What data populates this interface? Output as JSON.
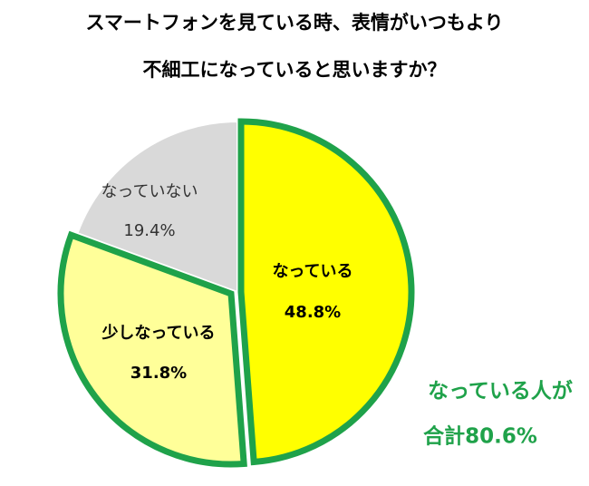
{
  "chart_data": {
    "type": "pie",
    "title": [
      "スマートフォンを見ている時、表情がいつもより",
      "不細工になっていると思いますか？"
    ],
    "categories": [
      "なっている",
      "少しなっている",
      "なっていない"
    ],
    "values": [
      48.8,
      31.8,
      19.4
    ],
    "value_labels": [
      "48.8%",
      "31.8%",
      "19.4%"
    ],
    "colors": [
      "#ffff00",
      "#ffff99",
      "#d9d9d9"
    ],
    "outline_color": "#1fa24a",
    "annotation": [
      "なっている人が",
      "合計80.6%"
    ]
  }
}
